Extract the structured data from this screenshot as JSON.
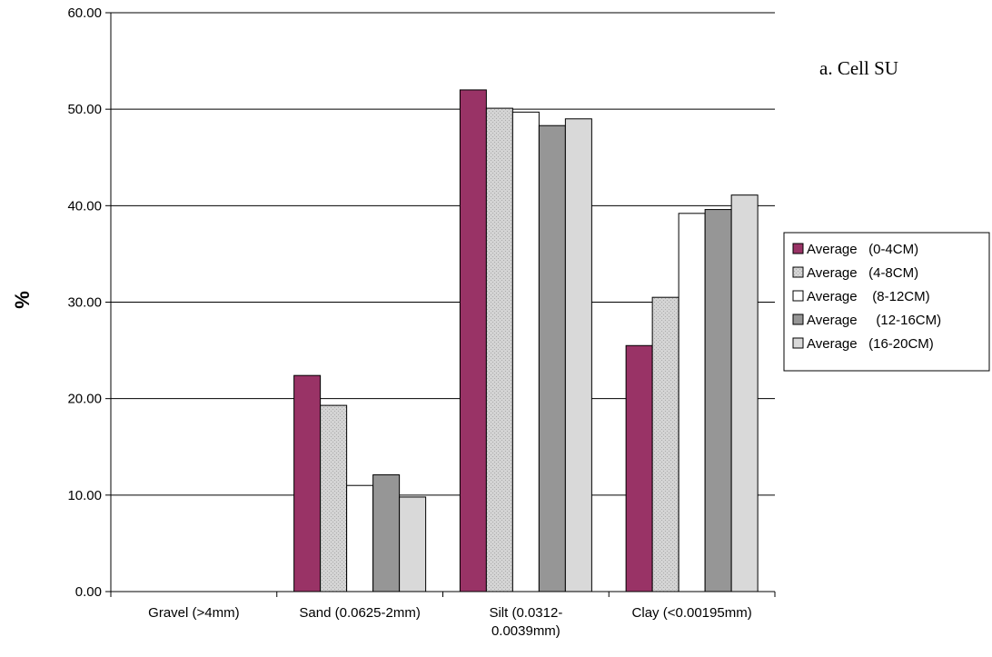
{
  "chart_data": {
    "type": "bar",
    "ylabel": "%",
    "ylim": [
      0,
      60
    ],
    "yticks": [
      "0.00",
      "10.00",
      "20.00",
      "30.00",
      "40.00",
      "50.00",
      "60.00"
    ],
    "categories": [
      [
        "Gravel (>4mm)"
      ],
      [
        "Sand (0.0625-2mm)"
      ],
      [
        "Silt (0.0312-",
        "0.0039mm)"
      ],
      [
        "Clay (<0.00195mm)"
      ]
    ],
    "series": [
      {
        "name": "Average   (0-4CM)",
        "values": [
          0,
          22.4,
          52.0,
          25.5
        ],
        "color": "#993366",
        "pattern": "solid"
      },
      {
        "name": "Average   (4-8CM)",
        "values": [
          0,
          19.3,
          50.1,
          30.5
        ],
        "color": "#d9d9d9",
        "pattern": "dots"
      },
      {
        "name": "Average    (8-12CM)",
        "values": [
          0,
          11.0,
          49.7,
          39.2
        ],
        "color": "#ffffff",
        "pattern": "solid"
      },
      {
        "name": "Average     (12-16CM)",
        "values": [
          0,
          12.1,
          48.3,
          39.6
        ],
        "color": "#969696",
        "pattern": "solid"
      },
      {
        "name": "Average   (16-20CM)",
        "values": [
          0,
          9.8,
          49.0,
          41.1
        ],
        "color": "#d9d9d9",
        "pattern": "solid"
      }
    ],
    "annotation": "a.  Cell SU",
    "grid": true,
    "legend_position": "right"
  }
}
